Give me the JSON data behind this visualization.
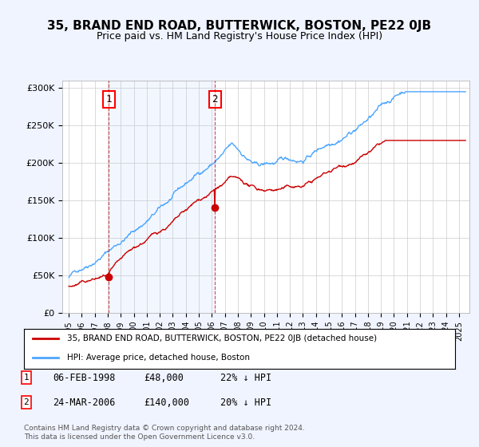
{
  "title": "35, BRAND END ROAD, BUTTERWICK, BOSTON, PE22 0JB",
  "subtitle": "Price paid vs. HM Land Registry's House Price Index (HPI)",
  "ylim": [
    0,
    310000
  ],
  "hpi_color": "#4da6ff",
  "price_color": "#cc0000",
  "sale1_date": 1998.09,
  "sale1_price": 48000,
  "sale1_label": "1",
  "sale2_date": 2006.23,
  "sale2_price": 140000,
  "sale2_label": "2",
  "legend_line1": "35, BRAND END ROAD, BUTTERWICK, BOSTON, PE22 0JB (detached house)",
  "legend_line2": "HPI: Average price, detached house, Boston",
  "table_row1": [
    "1",
    "06-FEB-1998",
    "£48,000",
    "22% ↓ HPI"
  ],
  "table_row2": [
    "2",
    "24-MAR-2006",
    "£140,000",
    "20% ↓ HPI"
  ],
  "footnote": "Contains HM Land Registry data © Crown copyright and database right 2024.\nThis data is licensed under the Open Government Licence v3.0.",
  "background_color": "#f0f4ff",
  "plot_bg_color": "#ffffff",
  "grid_color": "#cccccc"
}
